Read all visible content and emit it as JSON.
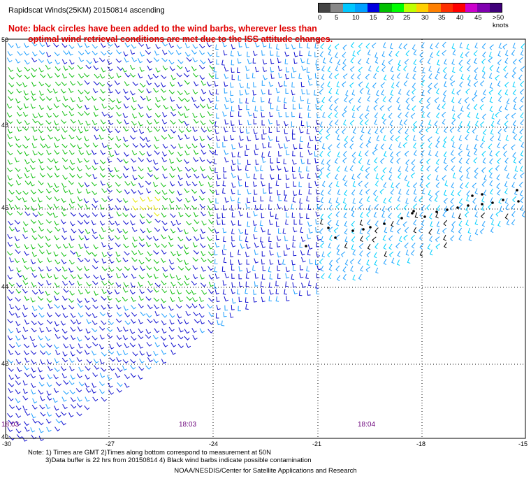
{
  "title": "Rapidscat Winds(25KM) 20150814 ascending",
  "note": {
    "line1": "Note: black circles have been added to the wind barbs, wherever less than",
    "line2": "optimal wind retrieval conditions are met due to the ISS attitude changes."
  },
  "legend": {
    "labels": [
      "0",
      "5",
      "10",
      "15",
      "20",
      "25",
      "30",
      "35",
      "40",
      "45",
      ">50 knots"
    ],
    "colors": [
      "#444444",
      "#888888",
      "#00c8ff",
      "#00a0ff",
      "#0000e0",
      "#00c000",
      "#00ff00",
      "#c0ff00",
      "#ffd000",
      "#ff8000",
      "#ff3000",
      "#ff0000",
      "#cc00cc",
      "#8000b0",
      "#40007a"
    ]
  },
  "axes": {
    "lat_labels": [
      "50",
      "48",
      "46",
      "44",
      "42",
      "40"
    ],
    "lon_labels": [
      "-30",
      "-27",
      "-24",
      "-21",
      "-18",
      "-15"
    ]
  },
  "times": [
    "18:03",
    "18:03",
    "18:04"
  ],
  "footnote": {
    "line1": "Note: 1) Times are GMT 2)Times along bottom correspond to measurement at 50N",
    "line2": "3)Data buffer is 22 hrs from 20150814 4) Black wind barbs indicate possible contamination"
  },
  "credit": "NOAA/NESDIS/Center for Satellite Applications and Research",
  "barb_colors": {
    "cyan": "#00d0ff",
    "lightblue": "#20a0ff",
    "blue": "#1010d0",
    "green": "#10c010",
    "yellow": "#e8e800",
    "black": "#000000"
  }
}
